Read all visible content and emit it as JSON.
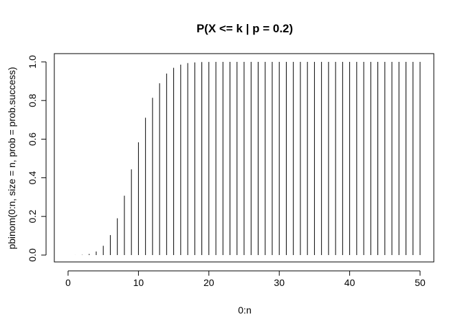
{
  "chart_data": {
    "type": "bar",
    "title": "P(X <= k | p = 0.2)",
    "xlabel": "0:n",
    "ylabel": "pbinom(0:n, size = n, prob = prob.success)",
    "xlim": [
      -2,
      52
    ],
    "ylim": [
      0,
      1
    ],
    "xticks": [
      0,
      10,
      20,
      30,
      40,
      50
    ],
    "yticks": [
      0.0,
      0.2,
      0.4,
      0.6,
      0.8,
      1.0
    ],
    "xtick_labels": [
      "0",
      "10",
      "20",
      "30",
      "40",
      "50"
    ],
    "ytick_labels": [
      "0.0",
      "0.2",
      "0.4",
      "0.6",
      "0.8",
      "1.0"
    ],
    "x": [
      0,
      1,
      2,
      3,
      4,
      5,
      6,
      7,
      8,
      9,
      10,
      11,
      12,
      13,
      14,
      15,
      16,
      17,
      18,
      19,
      20,
      21,
      22,
      23,
      24,
      25,
      26,
      27,
      28,
      29,
      30,
      31,
      32,
      33,
      34,
      35,
      36,
      37,
      38,
      39,
      40,
      41,
      42,
      43,
      44,
      45,
      46,
      47,
      48,
      49,
      50
    ],
    "values": [
      0.0,
      0.0002,
      0.0013,
      0.0057,
      0.0185,
      0.048,
      0.1034,
      0.1904,
      0.3073,
      0.4437,
      0.5836,
      0.7107,
      0.8139,
      0.8894,
      0.9393,
      0.9692,
      0.9856,
      0.9937,
      0.9975,
      0.9991,
      0.9997,
      0.9999,
      1.0,
      1.0,
      1.0,
      1.0,
      1.0,
      1.0,
      1.0,
      1.0,
      1.0,
      1.0,
      1.0,
      1.0,
      1.0,
      1.0,
      1.0,
      1.0,
      1.0,
      1.0,
      1.0,
      1.0,
      1.0,
      1.0,
      1.0,
      1.0,
      1.0,
      1.0,
      1.0,
      1.0,
      1.0
    ],
    "series_style": "vertical lines (type = h)",
    "grid": false,
    "legend": "none"
  }
}
